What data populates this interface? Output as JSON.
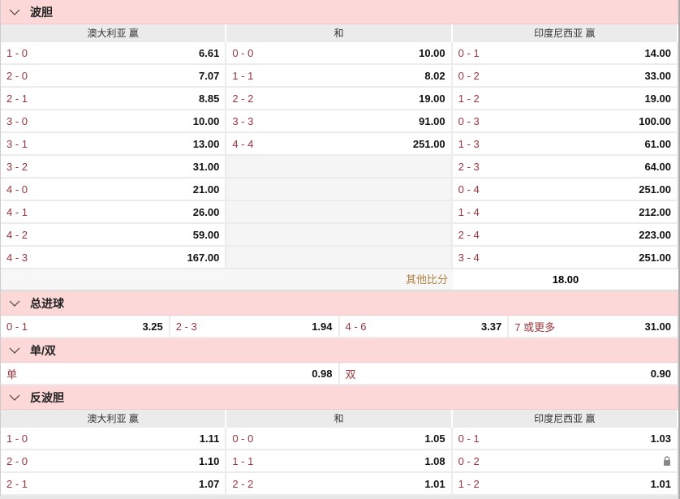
{
  "correct_score": {
    "title": "波胆",
    "headers": [
      "澳大利亚 赢",
      "和",
      "印度尼西亚 赢"
    ],
    "rows": [
      [
        [
          "1 - 0",
          "6.61"
        ],
        [
          "0 - 0",
          "10.00"
        ],
        [
          "0 - 1",
          "14.00"
        ]
      ],
      [
        [
          "2 - 0",
          "7.07"
        ],
        [
          "1 - 1",
          "8.02"
        ],
        [
          "0 - 2",
          "33.00"
        ]
      ],
      [
        [
          "2 - 1",
          "8.85"
        ],
        [
          "2 - 2",
          "19.00"
        ],
        [
          "1 - 2",
          "19.00"
        ]
      ],
      [
        [
          "3 - 0",
          "10.00"
        ],
        [
          "3 - 3",
          "91.00"
        ],
        [
          "0 - 3",
          "100.00"
        ]
      ],
      [
        [
          "3 - 1",
          "13.00"
        ],
        [
          "4 - 4",
          "251.00"
        ],
        [
          "1 - 3",
          "61.00"
        ]
      ],
      [
        [
          "3 - 2",
          "31.00"
        ],
        null,
        [
          "2 - 3",
          "64.00"
        ]
      ],
      [
        [
          "4 - 0",
          "21.00"
        ],
        null,
        [
          "0 - 4",
          "251.00"
        ]
      ],
      [
        [
          "4 - 1",
          "26.00"
        ],
        null,
        [
          "1 - 4",
          "212.00"
        ]
      ],
      [
        [
          "4 - 2",
          "59.00"
        ],
        null,
        [
          "2 - 4",
          "223.00"
        ]
      ],
      [
        [
          "4 - 3",
          "167.00"
        ],
        null,
        [
          "3 - 4",
          "251.00"
        ]
      ]
    ],
    "other_label": "其他比分",
    "other_value": "18.00"
  },
  "total_goals": {
    "title": "总进球",
    "items": [
      [
        "0 - 1",
        "3.25"
      ],
      [
        "2 - 3",
        "1.94"
      ],
      [
        "4 - 6",
        "3.37"
      ],
      [
        "7 或更多",
        "31.00"
      ]
    ]
  },
  "odd_even": {
    "title": "单/双",
    "items": [
      [
        "单",
        "0.98"
      ],
      [
        "双",
        "0.90"
      ]
    ]
  },
  "reverse_score": {
    "title": "反波胆",
    "headers": [
      "澳大利亚 赢",
      "和",
      "印度尼西亚 赢"
    ],
    "rows": [
      [
        [
          "1 - 0",
          "1.11"
        ],
        [
          "0 - 0",
          "1.05"
        ],
        [
          "0 - 1",
          "1.03"
        ]
      ],
      [
        [
          "2 - 0",
          "1.10"
        ],
        [
          "1 - 1",
          "1.08"
        ],
        [
          "0 - 2",
          null
        ]
      ],
      [
        [
          "2 - 1",
          "1.07"
        ],
        [
          "2 - 2",
          "1.01"
        ],
        [
          "1 - 2",
          "1.01"
        ]
      ]
    ]
  },
  "colors": {
    "header_bg": "#fdd8d8",
    "label": "#a1353b",
    "other_label": "#b08040"
  }
}
